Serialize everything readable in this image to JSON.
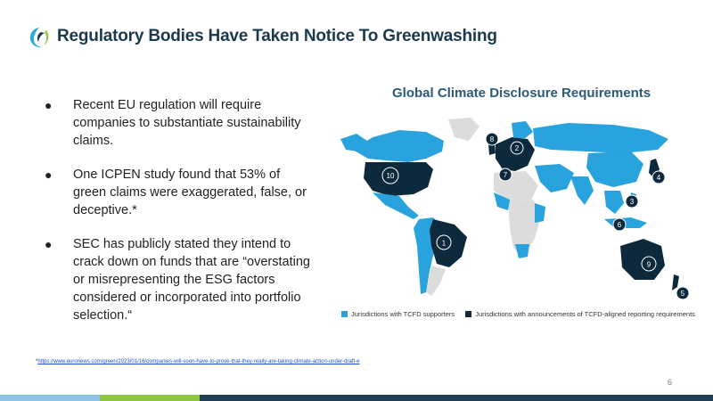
{
  "header": {
    "title": "Regulatory Bodies Have Taken Notice To Greenwashing",
    "logo_icon": "leaf-swirl-icon"
  },
  "bullets": [
    {
      "text": "Recent EU regulation will require companies to substantiate sustainability claims."
    },
    {
      "text": "One ICPEN study found that 53% of green claims were exaggerated, false, or deceptive.*"
    },
    {
      "text": "SEC has publicly stated they intend to crack down on funds that are “overstating or misrepresenting the ESG factors considered or incorporated into portfolio selection.“"
    }
  ],
  "bullet_symbol": "●",
  "map": {
    "title": "Global Climate Disclosure Requirements",
    "markers": [
      {
        "label": "1",
        "region": "Brazil"
      },
      {
        "label": "2",
        "region": "Northern Europe"
      },
      {
        "label": "3",
        "region": "Southeast Asia"
      },
      {
        "label": "4",
        "region": "Japan"
      },
      {
        "label": "5",
        "region": "New Zealand"
      },
      {
        "label": "6",
        "region": "Singapore"
      },
      {
        "label": "7",
        "region": "Southern Europe"
      },
      {
        "label": "8",
        "region": "United Kingdom"
      },
      {
        "label": "9",
        "region": "Australia"
      },
      {
        "label": "10",
        "region": "United States"
      }
    ],
    "colors": {
      "tcfd_supporters": "#29a3dd",
      "tcfd_aligned": "#0c2a3c",
      "other": "#dcdcdc"
    }
  },
  "legend": [
    {
      "label": "Jurisdictions with TCFD supporters",
      "color": "#29a3dd"
    },
    {
      "label": "Jurisdictions with announcements of TCFD-aligned reporting requirements",
      "color": "#0c2a3c"
    }
  ],
  "footnote": {
    "marker": "*",
    "link": "https://www.euronews.com/green/2023/01/16/companies-will-soon-have-to-prove-that-they-really-are-taking-climate-action-under-draft-e"
  },
  "page_number": "6",
  "bottom_bar_colors": [
    "#8fc4e6",
    "#8dc63f",
    "#1f3f57"
  ]
}
